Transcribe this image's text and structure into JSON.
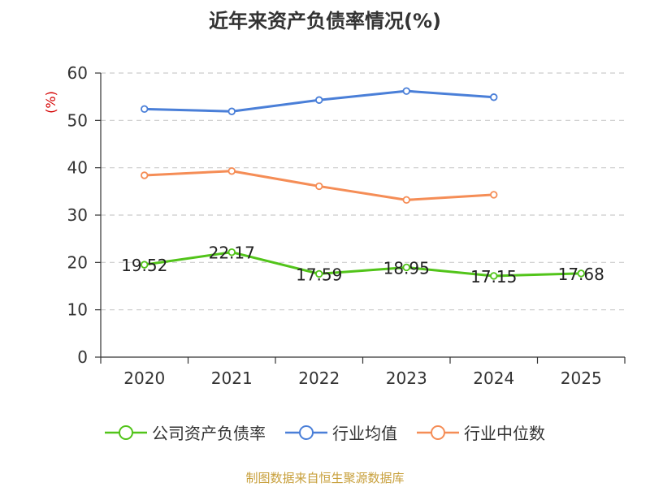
{
  "title": "近年来资产负债率情况(%)",
  "source": "制图数据来自恒生聚源数据库",
  "colors": {
    "company": "#52c41a",
    "industry_avg": "#4a7fd8",
    "industry_median": "#f58d56",
    "axis_unit": "#d40000",
    "grid": "#cccccc",
    "source": "#c8a03c"
  },
  "chart_data": {
    "type": "line",
    "title": "近年来资产负债率情况(%)",
    "ylabel": "(%)",
    "xlabel": "",
    "ylim": [
      0,
      60
    ],
    "yticks": [
      0,
      10,
      20,
      30,
      40,
      50,
      60
    ],
    "categories": [
      "2020",
      "2021",
      "2022",
      "2023",
      "2024",
      "2025"
    ],
    "grid": true,
    "legend_position": "bottom",
    "series": [
      {
        "name": "公司资产负债率",
        "color": "#52c41a",
        "values": [
          19.52,
          22.17,
          17.59,
          18.95,
          17.15,
          17.68
        ],
        "labels": [
          "19.52",
          "22.17",
          "17.59",
          "18.95",
          "17.15",
          "17.68"
        ]
      },
      {
        "name": "行业均值",
        "color": "#4a7fd8",
        "values": [
          52.4,
          51.9,
          54.3,
          56.2,
          54.9,
          null
        ]
      },
      {
        "name": "行业中位数",
        "color": "#f58d56",
        "values": [
          38.4,
          39.3,
          36.1,
          33.2,
          34.3,
          null
        ]
      }
    ]
  }
}
